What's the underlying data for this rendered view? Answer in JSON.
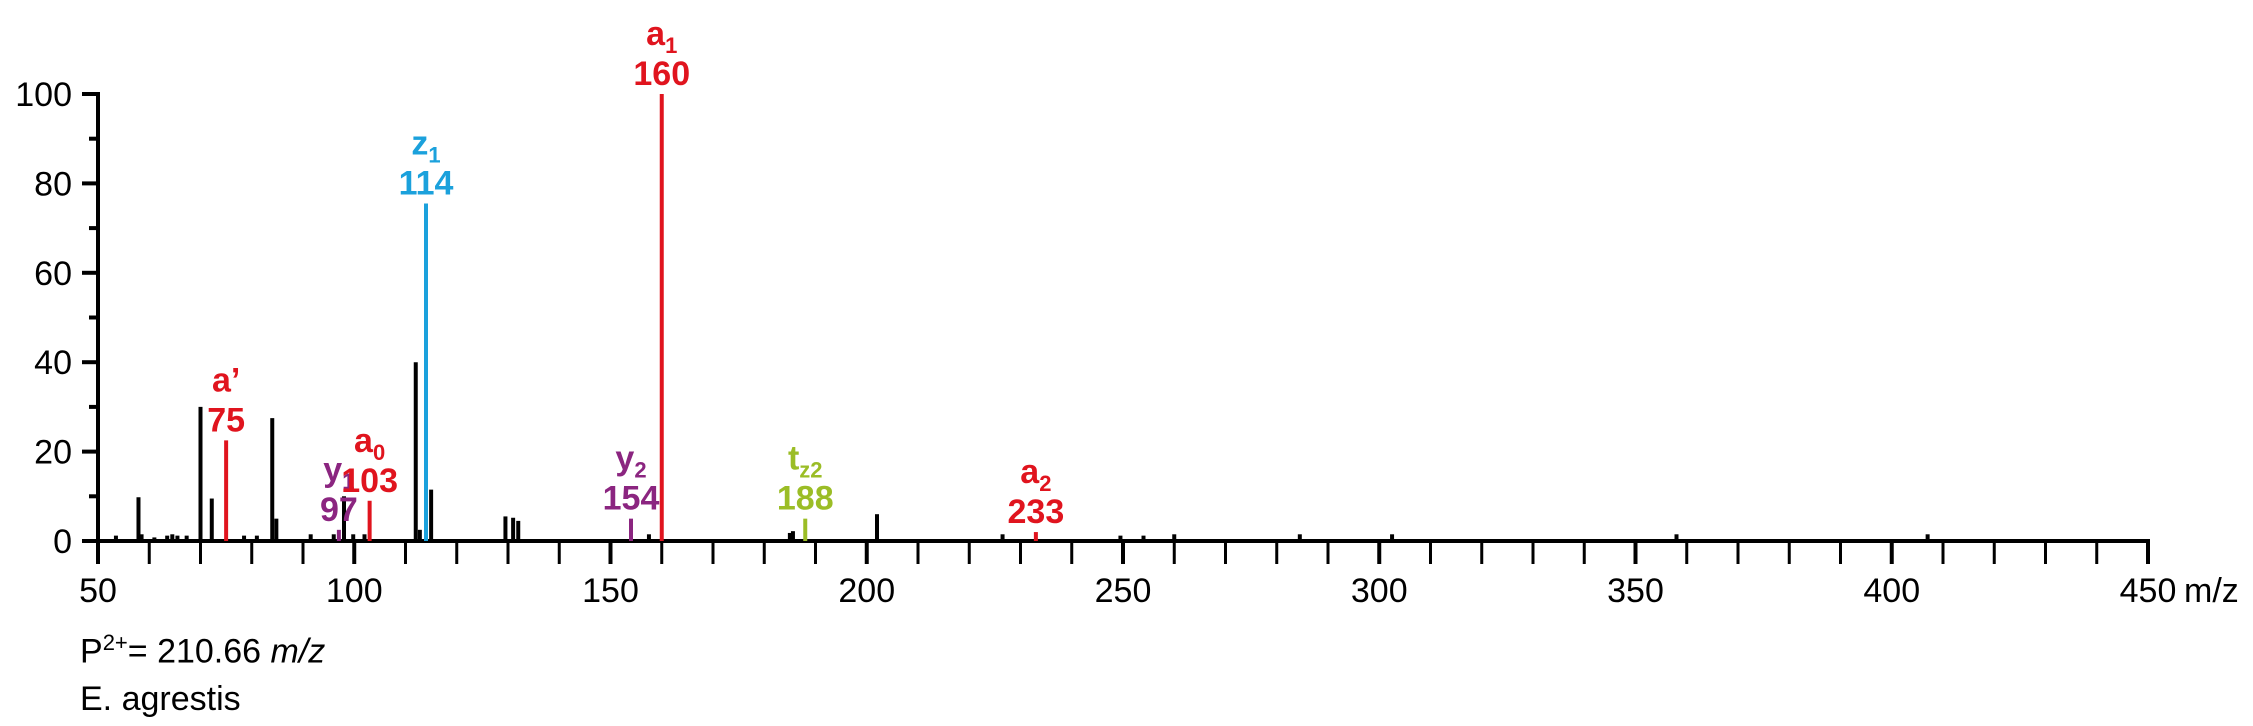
{
  "chart_data": {
    "type": "bar",
    "xlabel": "m/z",
    "ylabel": "",
    "xlim": [
      50,
      450
    ],
    "ylim": [
      0,
      100
    ],
    "x_ticks": [
      "50",
      "100",
      "150",
      "200",
      "250",
      "300",
      "350",
      "400",
      "450"
    ],
    "y_ticks": [
      "0",
      "20",
      "40",
      "60",
      "80",
      "100"
    ],
    "colors": {
      "axis": "#000000",
      "unassigned": "#000000",
      "a_ions": "#e0141e",
      "z_ions": "#1ba1dc",
      "y_ions": "#8b2580",
      "t_ions": "#9bbd26"
    },
    "series": [
      {
        "ion_type": "unassigned",
        "color": "#000000",
        "x": [
          53.5,
          57.9,
          58.5,
          61,
          63.5,
          64.5,
          65.5,
          67.3,
          70,
          72.2,
          78.5,
          81,
          84,
          84.8,
          91.5,
          96,
          98,
          99.8,
          102,
          112,
          112.8,
          115,
          129.5,
          131,
          132,
          157.5,
          185,
          185.6,
          202,
          226.5,
          249.5,
          254,
          260,
          284.5,
          302.5,
          358,
          407
        ],
        "values": [
          1.2,
          9.8,
          1.5,
          0.8,
          1.2,
          1.5,
          1.2,
          1.2,
          30,
          9.5,
          1.2,
          1.2,
          27.5,
          5,
          1.5,
          1.5,
          10,
          1.5,
          1.5,
          40,
          2.5,
          11.5,
          5.5,
          5.2,
          4.5,
          1.5,
          1.8,
          2.2,
          6,
          1.5,
          1.2,
          1.2,
          1.5,
          1.5,
          1.5,
          1.5,
          1.5
        ]
      },
      {
        "ion_type": "a",
        "color": "#e0141e",
        "x": [
          75,
          103,
          160,
          233
        ],
        "values": [
          22.5,
          9,
          100,
          2
        ]
      },
      {
        "ion_type": "z",
        "color": "#1ba1dc",
        "x": [
          114
        ],
        "values": [
          75.5
        ]
      },
      {
        "ion_type": "y",
        "color": "#8b2580",
        "x": [
          97,
          154
        ],
        "values": [
          2.5,
          5
        ]
      },
      {
        "ion_type": "t",
        "color": "#9bbd26",
        "x": [
          188
        ],
        "values": [
          5
        ]
      }
    ],
    "annotations": [
      {
        "x": 75,
        "y": 22.5,
        "name": "a’",
        "sub": "",
        "value": "75",
        "color": "#e0141e"
      },
      {
        "x": 97,
        "y": 2.5,
        "name": "y",
        "sub": "1",
        "value": "97",
        "color": "#8b2580"
      },
      {
        "x": 103,
        "y": 9,
        "name": "a",
        "sub": "0",
        "value": "103",
        "color": "#e0141e"
      },
      {
        "x": 114,
        "y": 75.5,
        "name": "z",
        "sub": "1",
        "value": "114",
        "color": "#1ba1dc"
      },
      {
        "x": 154,
        "y": 5,
        "name": "y",
        "sub": "2",
        "value": "154",
        "color": "#8b2580"
      },
      {
        "x": 160,
        "y": 100,
        "name": "a",
        "sub": "1",
        "value": "160",
        "color": "#e0141e"
      },
      {
        "x": 188,
        "y": 5,
        "name": "t",
        "sub": "z2",
        "value": "188",
        "color": "#9bbd26"
      },
      {
        "x": 233,
        "y": 2,
        "name": "a",
        "sub": "2",
        "value": "233",
        "color": "#e0141e"
      }
    ]
  },
  "notes": {
    "precursor_label": "P",
    "precursor_charge": "2+",
    "precursor_value": "= 210.66 ",
    "precursor_unit": "m/z",
    "species": "E. agrestis"
  }
}
